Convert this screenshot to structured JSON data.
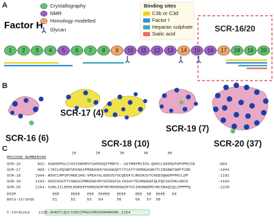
{
  "panel_a": {
    "label": "A",
    "title": "Factor H",
    "legend": [
      {
        "name": "Crystallography",
        "color": "#5cc46a"
      },
      {
        "name": "NMR",
        "color": "#9b5fc9"
      },
      {
        "name": "Homology modelled",
        "color": "#f4a566"
      }
    ],
    "glycan": "Glycan",
    "binding_title": "Binding sites",
    "binding": [
      {
        "name": "C3b or C3d",
        "color": "#f2d31c"
      },
      {
        "name": "Factor I",
        "color": "#3b8ed6"
      },
      {
        "name": "Heparan sulphate",
        "color": "#3aa7c9"
      },
      {
        "name": "Sialic acid",
        "color": "#e96b6b"
      }
    ],
    "highlight": "SCR-16/20",
    "domains": [
      "1",
      "2",
      "3",
      "4",
      "5",
      "6",
      "7",
      "8",
      "9",
      "10",
      "11",
      "12",
      "13",
      "14",
      "15",
      "16",
      "17",
      "18",
      "19",
      "20"
    ],
    "domain_colors": [
      "#5cc46a",
      "#5cc46a",
      "#5cc46a",
      "#5cc46a",
      "#9b5fc9",
      "#5cc46a",
      "#5cc46a",
      "#5cc46a",
      "#f4a566",
      "#9b5fc9",
      "#9b5fc9",
      "#9b5fc9",
      "#9b5fc9",
      "#f4a566",
      "#9b5fc9",
      "#9b5fc9",
      "#f4a566",
      "#5cc46a",
      "#5cc46a",
      "#5cc46a"
    ]
  },
  "panel_b": {
    "label": "B",
    "structures": [
      "SCR-16 (6)",
      "SCR-17 (4)",
      "SCR-18 (10)",
      "SCR-19 (7)",
      "SCR-20 (37)"
    ]
  },
  "panel_c": {
    "label": "C",
    "numbering_title": "RESIDUE NUMBERING",
    "numbering": [
      "10",
      "20",
      "30",
      "40",
      "50"
    ],
    "rows": [
      {
        "name": "SCR-16",
        "start": "922-",
        "sequence": "KAEKEPGLCYATSSNGRVYSAPAGQTFRNTC--SATHNYMVIGS-QKKCLADGSWTGPVPECSE",
        "end": "-984"
      },
      {
        "name": "SCR-17",
        "start": "985-",
        "sequence": "LTKCLPQSNPSFENAIPMGEKKDVYKAGEQVTYTCATYYKMDGASNVTCINSRWTGRPTCRD",
        "end": "-1043"
      },
      {
        "name": "SCR-18",
        "start": "1044-",
        "sequence": "NGVCLRPSPVNGEIHG-VPEAYALGDEVSYSCQEGFYLRGSKSVTCNSEGQWSPPPKCLDP",
        "end": "-1102"
      },
      {
        "name": "SCR-19",
        "start": "1103-",
        "sequence": "KDSCKGIPTVSNGSIMMEKGEVRYSCDEGFSLVGSAVTECRNGEWTQLPQCVAIDKLKKCK",
        "end": "-1163"
      },
      {
        "name": "SCR-20",
        "start": "1164-",
        "sequence": "SSNLIILEEHLKNKKEFDHNSNIRYRCRGKEGWIHTVCINGRWDPEVNCSMAQIQLCPPPPQ",
        "end": "-1228"
      }
    ],
    "dssp": {
      "name": "DSSP",
      "sequence": "  EEE     EEEE   EEE  EEEEE   EEEE    EEE  EE  EEEE   EE   "
    },
    "strands": {
      "name": "Beta-strands",
      "sequence": "  b1      b2     b3   b4      b5      b6   b7  b8         "
    },
    "cterm": {
      "name": "C-terminus",
      "sequence": "1229-AKRSTLQVLSSEKIPNAVSMSGGHHHHHHE-1254"
    }
  }
}
